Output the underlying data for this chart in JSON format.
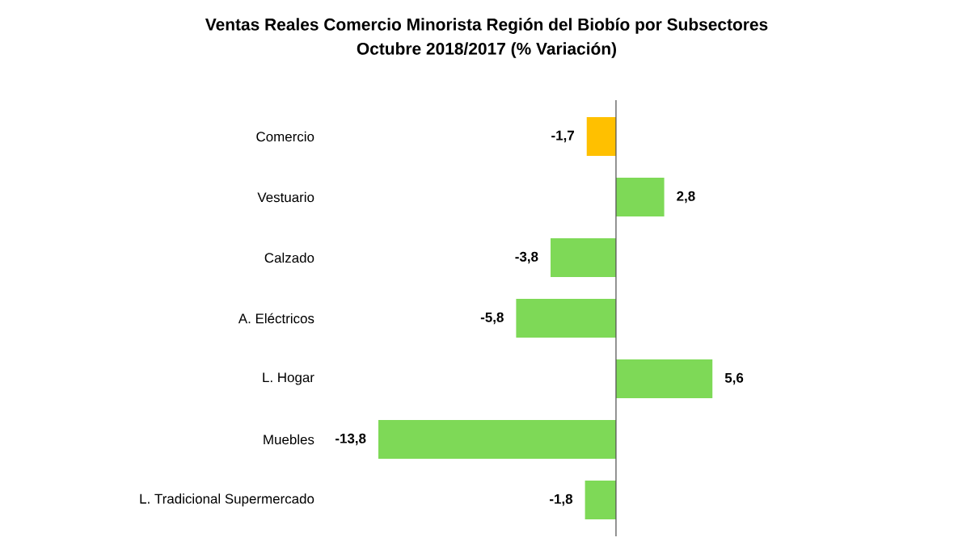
{
  "chart_data": {
    "type": "bar",
    "orientation": "horizontal",
    "title": "Ventas Reales Comercio Minorista Región del Biobío por Subsectores",
    "subtitle": "Octubre  2018/2017 (% Variación)",
    "categories": [
      "Comercio",
      "Vestuario",
      "Calzado",
      "A. Eléctricos",
      "L. Hogar",
      "Muebles",
      "L. Tradicional Supermercado"
    ],
    "values": [
      -1.7,
      2.8,
      -3.8,
      -5.8,
      5.6,
      -13.8,
      -1.8
    ],
    "colors": [
      "#ffc000",
      "#7ed957",
      "#7ed957",
      "#7ed957",
      "#7ed957",
      "#7ed957",
      "#7ed957"
    ],
    "value_labels": [
      "-1,7",
      "2,8",
      "-3,8",
      "-5,8",
      "5,6",
      "-13,8",
      "-1,8"
    ]
  }
}
